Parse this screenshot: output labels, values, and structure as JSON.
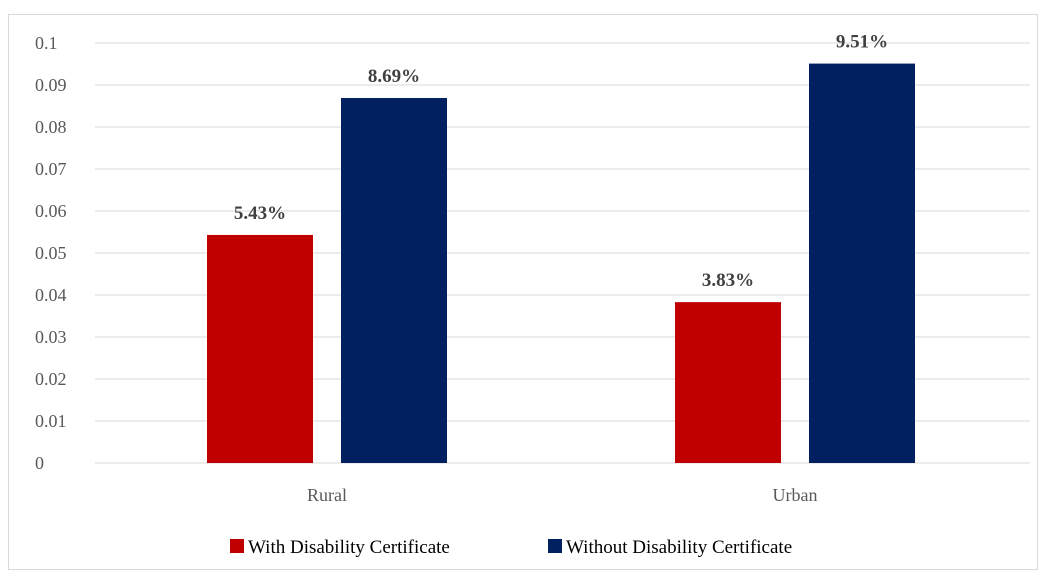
{
  "chart_data": {
    "type": "bar",
    "categories": [
      "Rural",
      "Urban"
    ],
    "series": [
      {
        "name": "With Disability Certificate",
        "values": [
          0.0543,
          0.0383
        ],
        "labels": [
          "5.43%",
          "3.83%"
        ],
        "color": "#c00000"
      },
      {
        "name": "Without Disability Certificate",
        "values": [
          0.0869,
          0.0951
        ],
        "labels": [
          "8.69%",
          "9.51%"
        ],
        "color": "#002060"
      }
    ],
    "yticks": [
      "0",
      "0.01",
      "0.02",
      "0.03",
      "0.04",
      "0.05",
      "0.06",
      "0.07",
      "0.08",
      "0.09",
      "0.1"
    ],
    "ylim": [
      0,
      0.1
    ],
    "grid": true,
    "legend": "bottom"
  }
}
